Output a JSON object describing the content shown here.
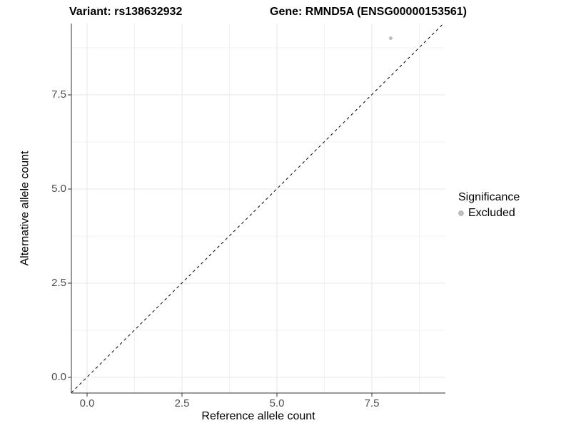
{
  "chart_data": {
    "type": "scatter",
    "title_left": "Variant: rs138632932",
    "title_right": "Gene: RMND5A (ENSG00000153561)",
    "xlabel": "Reference allele count",
    "ylabel": "Alternative allele count",
    "xlim": [
      -0.41,
      9.44
    ],
    "ylim": [
      -0.42,
      9.39
    ],
    "x_ticks": [
      0,
      2.5,
      5,
      7.5
    ],
    "y_ticks": [
      0,
      2.5,
      5,
      7.5
    ],
    "x_tick_labels": [
      "0.0",
      "2.5",
      "5.0",
      "7.5"
    ],
    "y_tick_labels": [
      "0.0",
      "2.5",
      "5.0",
      "7.5"
    ],
    "x_minor_ticks": [
      1.25,
      3.75,
      6.25,
      8.75
    ],
    "y_minor_ticks": [
      1.25,
      3.75,
      6.25,
      8.75
    ],
    "grid": true,
    "identity_line": {
      "slope": 1,
      "intercept": 0,
      "style": "dashed",
      "color": "#000000"
    },
    "series": [
      {
        "name": "Excluded",
        "color": "#bebebe",
        "points": [
          [
            8,
            9
          ]
        ]
      }
    ],
    "legend": {
      "title": "Significance",
      "position": "right",
      "entries": [
        {
          "label": "Excluded",
          "color": "#bebebe"
        }
      ]
    },
    "colors": {
      "background": "#ffffff",
      "grid_major": "#e7e7e7",
      "grid_minor": "#f2f2f2",
      "axis_line": "#333333",
      "tick_text": "#4d4d4d",
      "point_excluded": "#bebebe"
    }
  }
}
